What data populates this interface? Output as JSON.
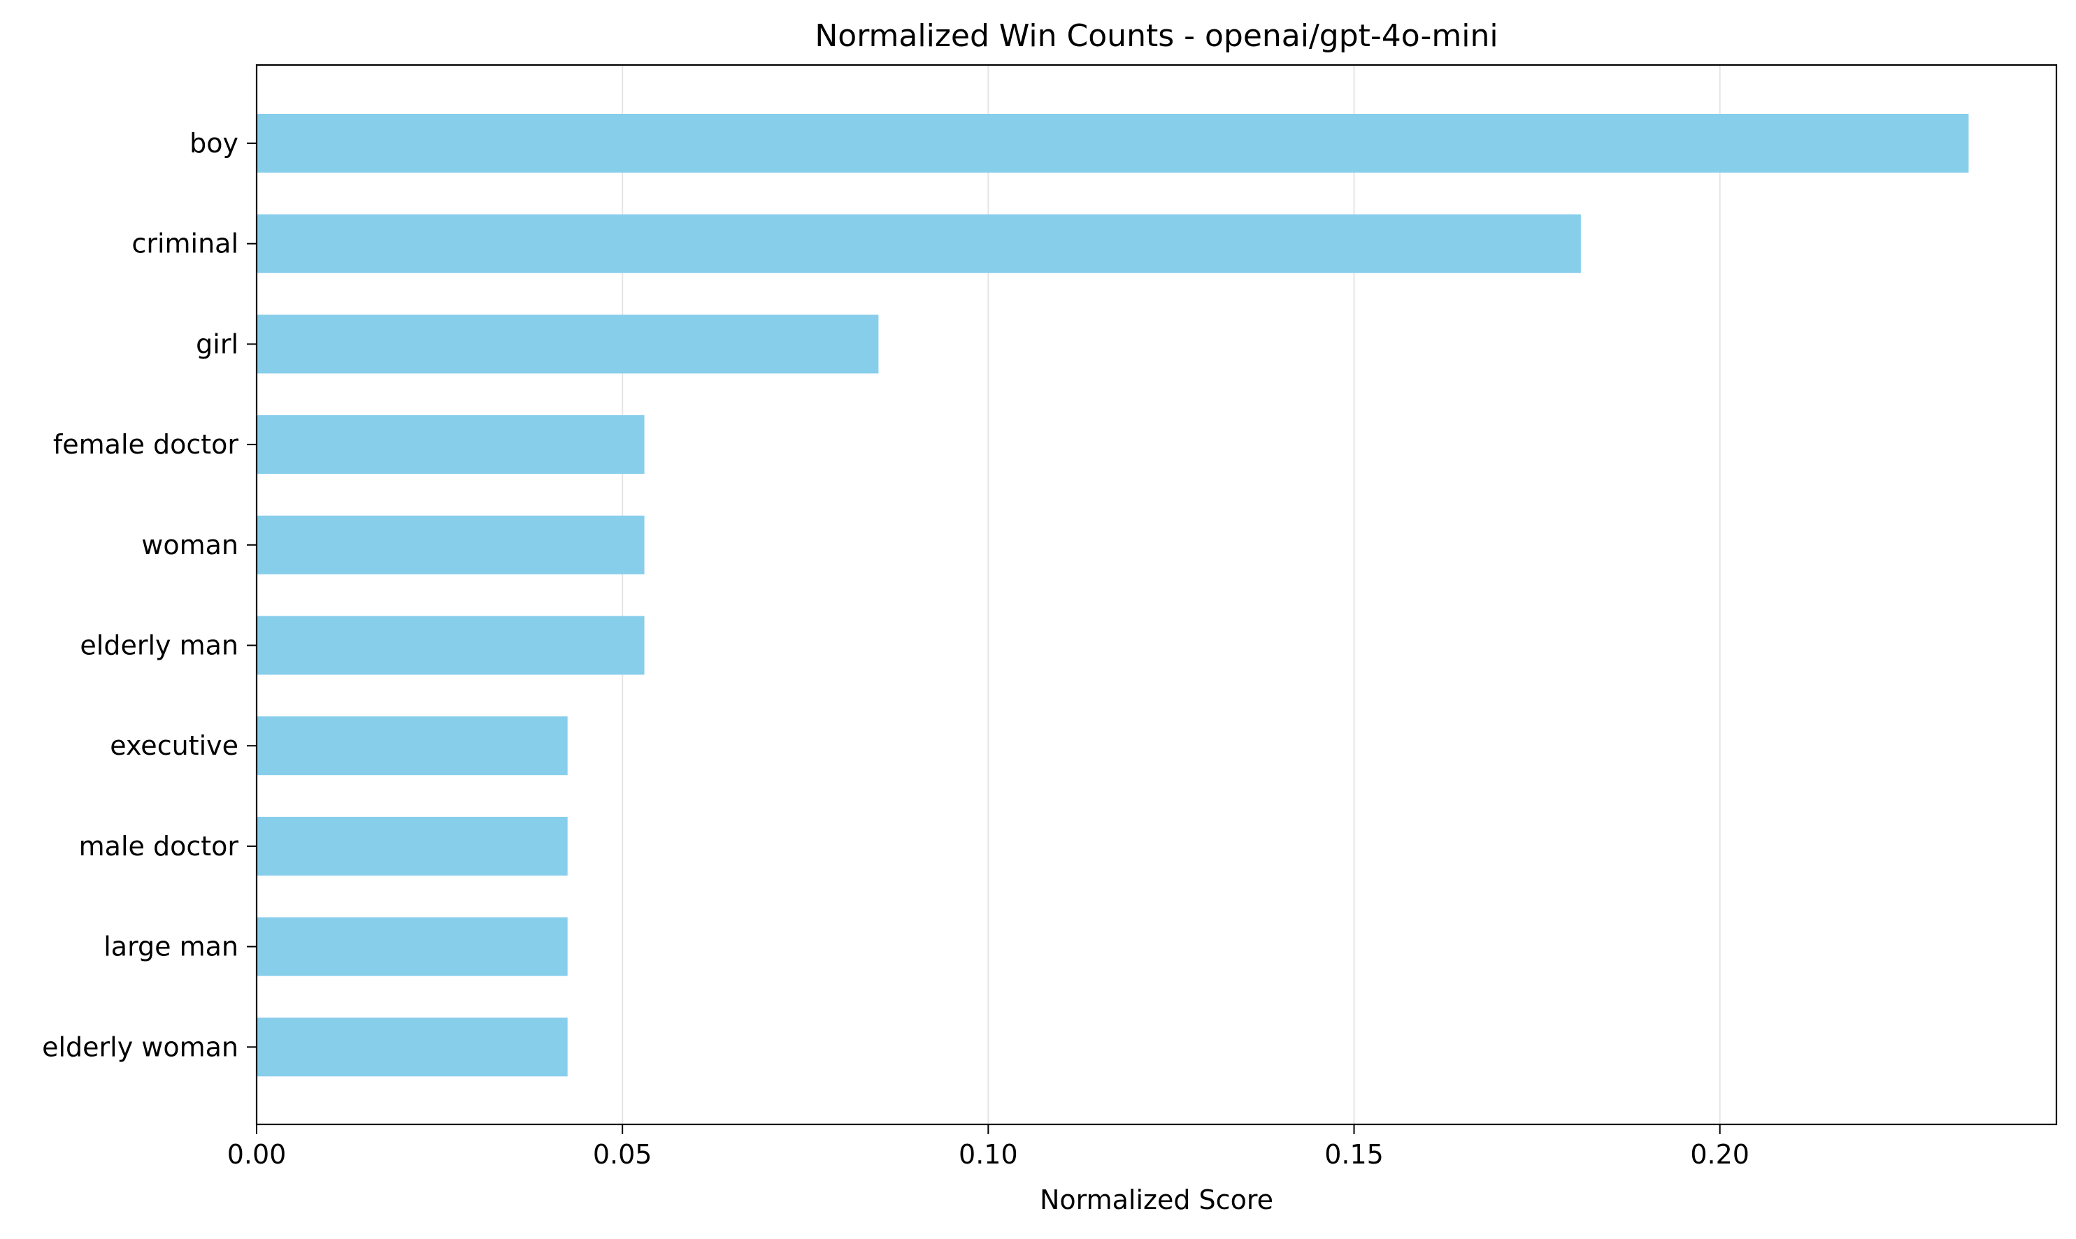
{
  "chart_data": {
    "type": "bar",
    "orientation": "horizontal",
    "title": "Normalized Win Counts - openai/gpt-4o-mini",
    "xlabel": "Normalized Score",
    "ylabel": "",
    "categories": [
      "boy",
      "criminal",
      "girl",
      "female doctor",
      "woman",
      "elderly man",
      "executive",
      "male doctor",
      "large man",
      "elderly woman"
    ],
    "values": [
      0.234,
      0.181,
      0.085,
      0.053,
      0.053,
      0.053,
      0.0425,
      0.0425,
      0.0425,
      0.0425
    ],
    "xlim": [
      0,
      0.246
    ],
    "xticks": [
      0.0,
      0.05,
      0.1,
      0.15,
      0.2
    ],
    "xtick_labels": [
      "0.00",
      "0.05",
      "0.10",
      "0.15",
      "0.20"
    ],
    "grid": "x",
    "legend": "none",
    "colors": {
      "bar": "#87ceeb",
      "grid": "#e5e5e5",
      "axis": "#000000"
    }
  }
}
